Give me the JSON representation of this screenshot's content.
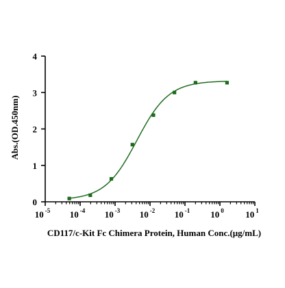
{
  "chart_data": {
    "type": "scatter",
    "x_scale": "log",
    "xlabel": "CD117/c-Kit Fc Chimera Protein, Human Conc.(μg/mL)",
    "ylabel": "Abs.(OD.450nm)",
    "xlim": [
      1e-05,
      10
    ],
    "ylim": [
      0,
      4
    ],
    "x_ticks": [
      {
        "value": 1e-05,
        "base": "10",
        "exp": "-5"
      },
      {
        "value": 0.0001,
        "base": "10",
        "exp": "-4"
      },
      {
        "value": 0.001,
        "base": "10",
        "exp": "-3"
      },
      {
        "value": 0.01,
        "base": "10",
        "exp": "-2"
      },
      {
        "value": 0.1,
        "base": "10",
        "exp": "-1"
      },
      {
        "value": 1,
        "base": "10",
        "exp": "0"
      },
      {
        "value": 10,
        "base": "10",
        "exp": "1"
      }
    ],
    "y_ticks": [
      {
        "value": 0,
        "label": "0"
      },
      {
        "value": 1,
        "label": "1"
      },
      {
        "value": 2,
        "label": "2"
      },
      {
        "value": 3,
        "label": "3"
      },
      {
        "value": 4,
        "label": "4"
      }
    ],
    "grid": false,
    "series": [
      {
        "marker": "square",
        "color": "#1e6b1e",
        "x": [
          4.88e-05,
          0.000195,
          0.00078,
          0.003125,
          0.0125,
          0.05,
          0.2,
          1.6
        ],
        "y": [
          0.09,
          0.18,
          0.63,
          1.57,
          2.38,
          3.0,
          3.27,
          3.27
        ]
      }
    ],
    "fit_curve": {
      "model": "4PL",
      "color": "#1e6b1e",
      "bottom": 0.05,
      "top": 3.32,
      "ec50": 0.0042,
      "hill": 0.95
    }
  }
}
